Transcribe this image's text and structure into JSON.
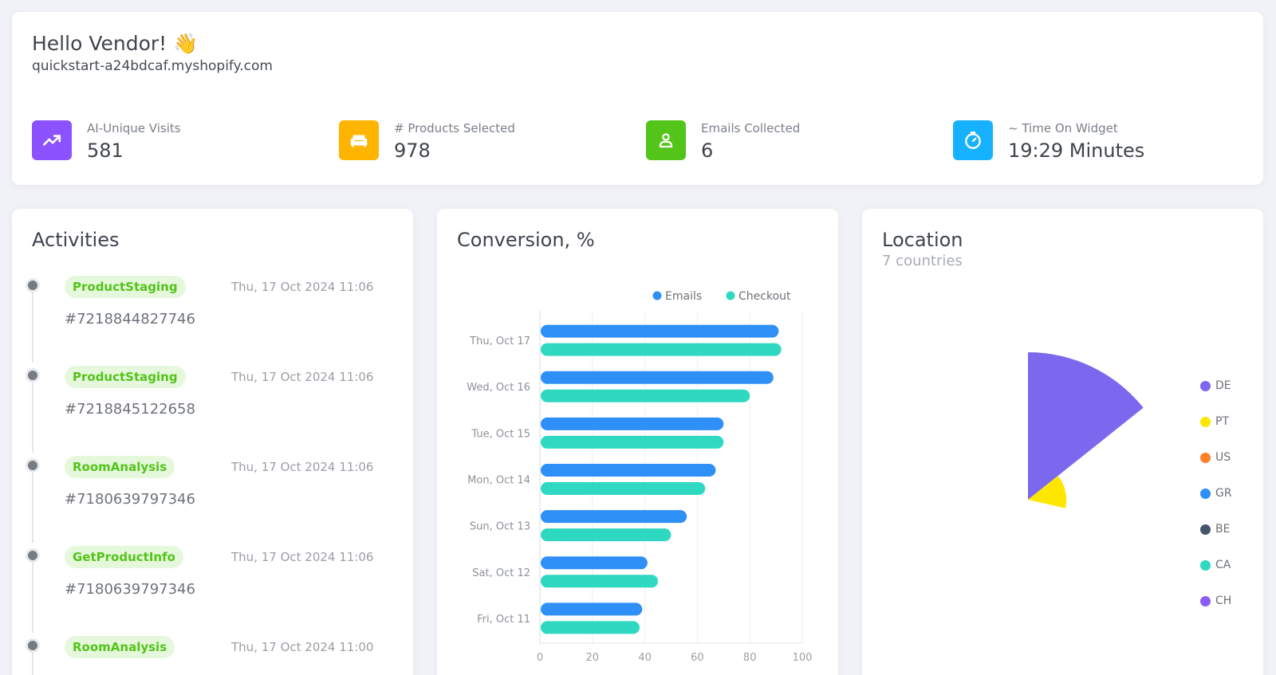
{
  "header": {
    "greeting": "Hello Vendor! 👋",
    "shop_domain": "quickstart-a24bdcaf.myshopify.com",
    "stats": [
      {
        "label": "AI-Unique Visits",
        "value": "581",
        "icon": "trending-up-icon",
        "color": "#8c52ff"
      },
      {
        "label": "# Products Selected",
        "value": "978",
        "icon": "sofa-icon",
        "color": "#ffb400"
      },
      {
        "label": "Emails Collected",
        "value": "6",
        "icon": "user-icon",
        "color": "#52c41a"
      },
      {
        "label": "~ Time On Widget",
        "value": "19:29 Minutes",
        "icon": "timer-icon",
        "color": "#16b1ff"
      }
    ]
  },
  "activities": {
    "title": "Activities",
    "items": [
      {
        "tag": "ProductStaging",
        "date": "Thu, 17 Oct 2024 11:06",
        "id": "#7218844827746"
      },
      {
        "tag": "ProductStaging",
        "date": "Thu, 17 Oct 2024 11:06",
        "id": "#7218845122658"
      },
      {
        "tag": "RoomAnalysis",
        "date": "Thu, 17 Oct 2024 11:06",
        "id": "#7180639797346"
      },
      {
        "tag": "GetProductInfo",
        "date": "Thu, 17 Oct 2024 11:06",
        "id": "#7180639797346"
      },
      {
        "tag": "RoomAnalysis",
        "date": "Thu, 17 Oct 2024 11:00",
        "id": ""
      }
    ]
  },
  "conversion": {
    "title": "Conversion, %"
  },
  "location": {
    "title": "Location",
    "subtitle": "7 countries"
  },
  "chart_data": [
    {
      "type": "bar",
      "orientation": "horizontal",
      "title": "Conversion, %",
      "categories": [
        "Thu, Oct 17",
        "Wed, Oct 16",
        "Tue, Oct 15",
        "Mon, Oct 14",
        "Sun, Oct 13",
        "Sat, Oct 12",
        "Fri, Oct 11"
      ],
      "series": [
        {
          "name": "Emails",
          "color": "#2e8ff7",
          "values": [
            91,
            89,
            70,
            67,
            56,
            41,
            39
          ]
        },
        {
          "name": "Checkout",
          "color": "#2fd8c0",
          "values": [
            92,
            80,
            70,
            63,
            50,
            45,
            38
          ]
        }
      ],
      "xlim": [
        0,
        100
      ],
      "xticks": [
        0,
        20,
        40,
        60,
        80,
        100
      ],
      "grid": true,
      "legend": "top-right"
    },
    {
      "type": "pie",
      "variant": "polar-area",
      "labels": [
        "DE",
        "PT",
        "US",
        "GR",
        "BE",
        "CA",
        "CH"
      ],
      "colors": [
        "#7b68ee",
        "#fde700",
        "#ff7f2a",
        "#2e8ff7",
        "#475569",
        "#2fd8c0",
        "#8b5cf6"
      ],
      "values": [
        100,
        26,
        0,
        0,
        0,
        0,
        0
      ],
      "legend": "right"
    }
  ]
}
